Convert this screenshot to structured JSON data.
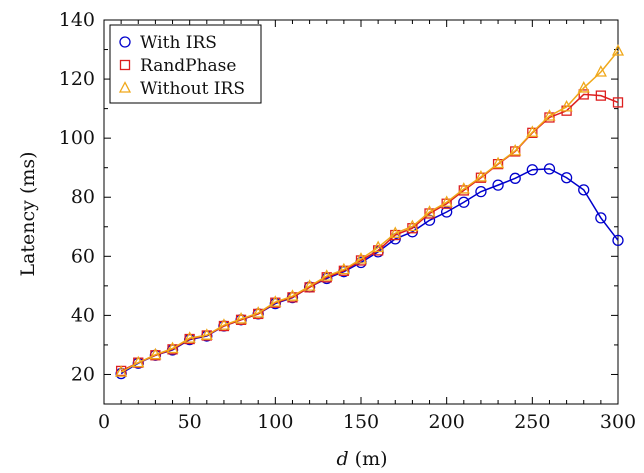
{
  "chart_data": {
    "type": "line",
    "title": "",
    "xlabel_var": "d",
    "xlabel_unit": " (m)",
    "ylabel": "Latency (ms)",
    "xlim": [
      0,
      300
    ],
    "ylim": [
      10,
      140
    ],
    "xticks": [
      0,
      50,
      100,
      150,
      200,
      250,
      300
    ],
    "yticks": [
      20,
      40,
      60,
      80,
      100,
      120,
      140
    ],
    "grid": false,
    "legend_position": "top-left",
    "x": [
      10,
      20,
      30,
      40,
      50,
      60,
      70,
      80,
      90,
      100,
      110,
      120,
      130,
      140,
      150,
      160,
      170,
      180,
      190,
      200,
      210,
      220,
      230,
      240,
      250,
      260,
      270,
      280,
      290,
      300
    ],
    "series": [
      {
        "name": "With IRS",
        "color": "#0000cc",
        "marker": "circle",
        "values": [
          20.3,
          23.8,
          26.5,
          28.3,
          31.8,
          33.0,
          36.4,
          38.5,
          40.5,
          44.0,
          46.0,
          49.6,
          52.5,
          54.8,
          57.9,
          61.5,
          65.9,
          68.3,
          72.2,
          75.0,
          78.3,
          81.9,
          84.1,
          86.4,
          89.3,
          89.6,
          86.6,
          82.5,
          73.0,
          65.4
        ]
      },
      {
        "name": "RandPhase",
        "color": "#dd1f1f",
        "marker": "square",
        "values": [
          21.2,
          24.0,
          26.5,
          28.5,
          32.0,
          33.2,
          36.4,
          38.5,
          40.5,
          44.3,
          46.1,
          49.5,
          52.9,
          55.1,
          58.6,
          62.0,
          67.2,
          69.5,
          74.5,
          77.8,
          82.3,
          86.6,
          91.2,
          95.5,
          101.8,
          107.0,
          109.3,
          114.8,
          114.4,
          112.1
        ]
      },
      {
        "name": "Without IRS",
        "color": "#f0a81a",
        "marker": "triangle",
        "values": [
          20.8,
          24.0,
          26.7,
          28.8,
          32.3,
          33.3,
          36.7,
          38.8,
          40.8,
          44.5,
          46.5,
          49.9,
          53.3,
          55.5,
          59.1,
          63.0,
          67.8,
          70.1,
          75.0,
          78.3,
          82.8,
          86.9,
          91.4,
          95.7,
          102.0,
          107.5,
          110.6,
          117.0,
          122.4,
          129.5
        ]
      }
    ]
  }
}
